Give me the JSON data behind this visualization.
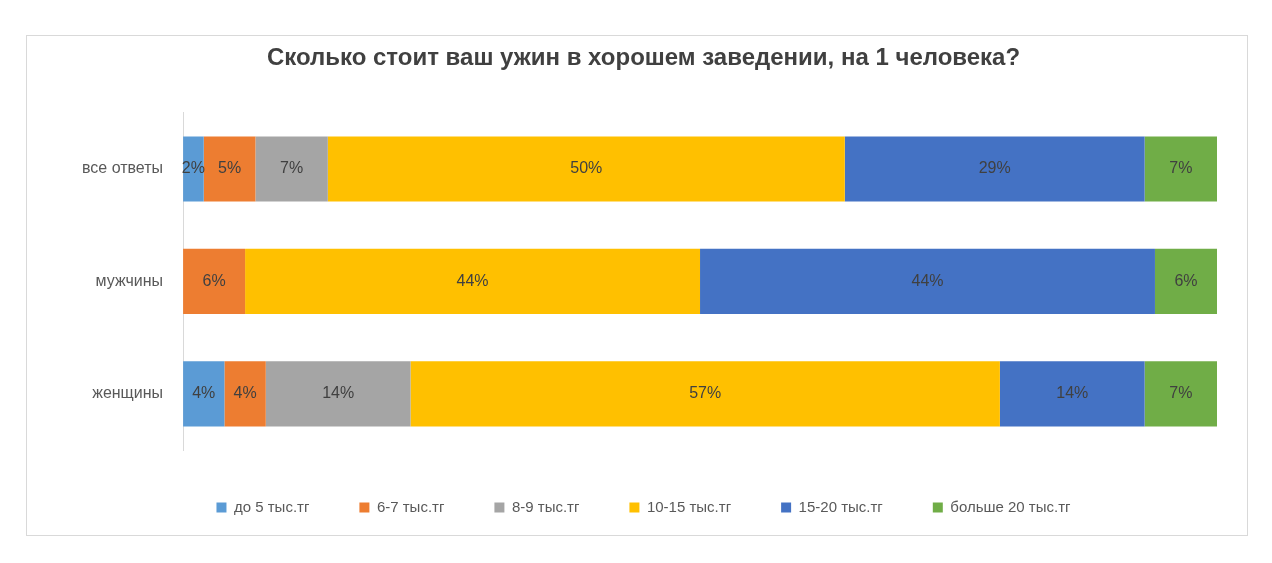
{
  "chart_data": {
    "type": "bar",
    "orientation": "horizontal",
    "stacked": true,
    "title": "Сколько стоит ваш ужин в хорошем заведении, на 1 человека?",
    "categories": [
      "все ответы",
      "мужчины",
      "женщины"
    ],
    "xlim": [
      0,
      100
    ],
    "tick_labels": "y",
    "legend": "bottom",
    "series": [
      {
        "name": "до 5 тыс.тг",
        "color": "#5b9bd5",
        "values": [
          2,
          null,
          4
        ],
        "value_labels": [
          "2%",
          null,
          "4%"
        ]
      },
      {
        "name": "6-7 тыс.тг",
        "color": "#ed7d31",
        "values": [
          5,
          6,
          4
        ],
        "value_labels": [
          "5%",
          "6%",
          "4%"
        ]
      },
      {
        "name": "8-9 тыс.тг",
        "color": "#a5a5a5",
        "values": [
          7,
          null,
          14
        ],
        "value_labels": [
          "7%",
          null,
          "14%"
        ]
      },
      {
        "name": "10-15 тыс.тг",
        "color": "#ffc000",
        "values": [
          50,
          44,
          57
        ],
        "value_labels": [
          "50%",
          "44%",
          "57%"
        ]
      },
      {
        "name": "15-20 тыс.тг",
        "color": "#4472c4",
        "values": [
          29,
          44,
          14
        ],
        "value_labels": [
          "29%",
          "44%",
          "14%"
        ]
      },
      {
        "name": "больше 20 тыс.тг",
        "color": "#70ad47",
        "values": [
          7,
          6,
          7
        ],
        "value_labels": [
          "7%",
          "6%",
          "7%"
        ]
      }
    ]
  }
}
